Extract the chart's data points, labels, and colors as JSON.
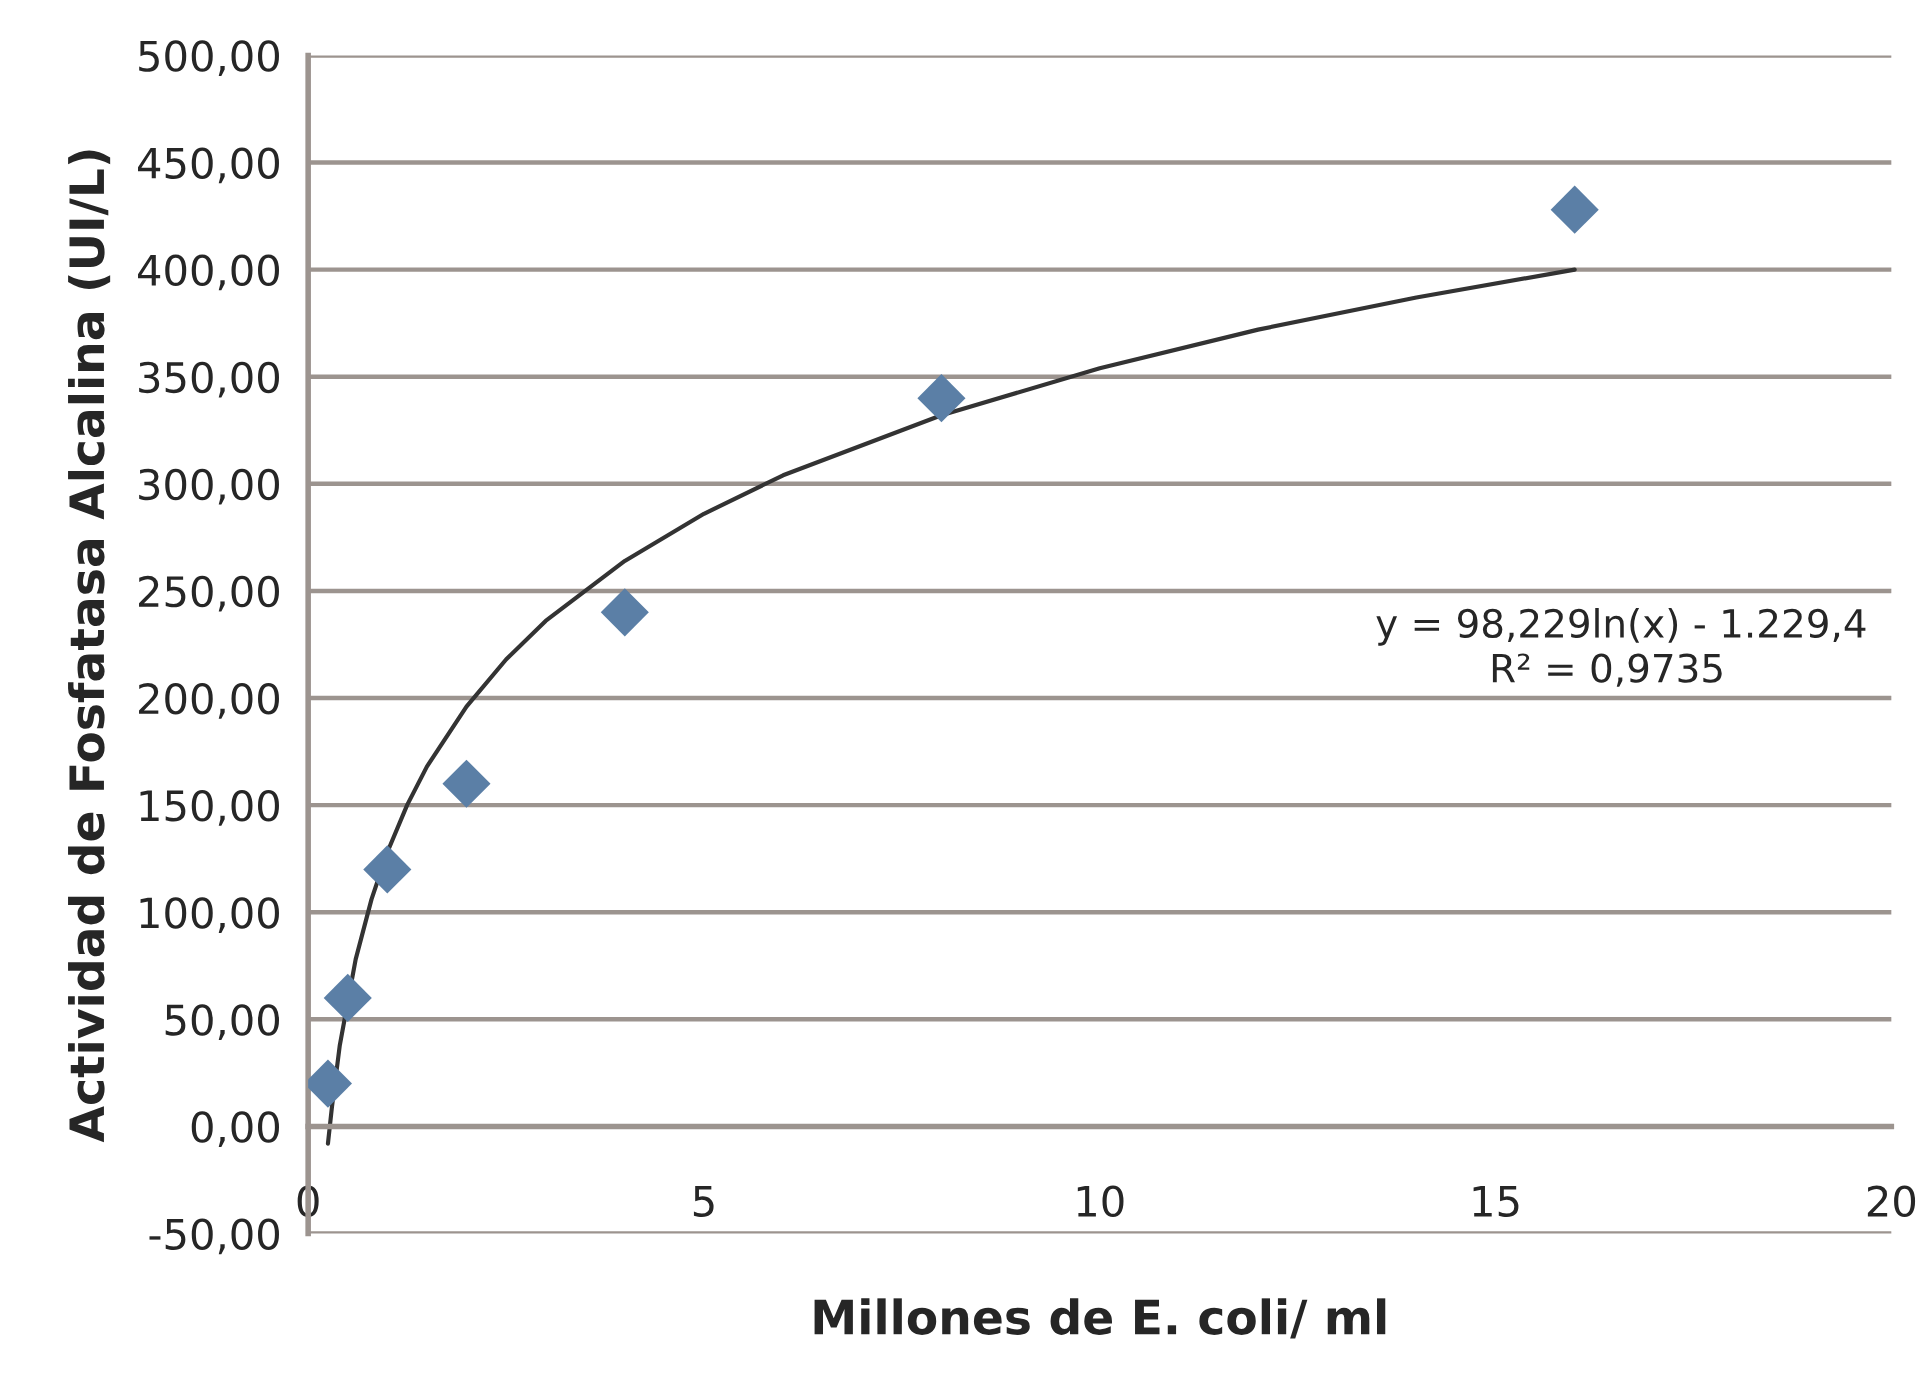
{
  "chart_data": {
    "type": "scatter",
    "xlabel": "Millones de E. coli/ ml",
    "ylabel": "Actividad de Fosfatasa Alcalina (UI/L)",
    "annotations": [
      "y = 98,229ln(x) - 1.229,4",
      "R² = 0,9735"
    ],
    "xlim": [
      0,
      20
    ],
    "xticks": [
      0,
      5,
      10,
      15,
      20
    ],
    "ylim": [
      -50,
      500
    ],
    "yticks": [
      {
        "value": -50,
        "label": "-50,00"
      },
      {
        "value": 0,
        "label": "0,00"
      },
      {
        "value": 50,
        "label": "50,00"
      },
      {
        "value": 100,
        "label": "100,00"
      },
      {
        "value": 150,
        "label": "150,00"
      },
      {
        "value": 200,
        "label": "200,00"
      },
      {
        "value": 250,
        "label": "250,00"
      },
      {
        "value": 300,
        "label": "300,00"
      },
      {
        "value": 350,
        "label": "350,00"
      },
      {
        "value": 400,
        "label": "400,00"
      },
      {
        "value": 450,
        "label": "450,00"
      },
      {
        "value": 500,
        "label": "500,00"
      }
    ],
    "grid": "y",
    "legend": false,
    "series": [
      {
        "marker": "diamond",
        "color": "#5b7fa6",
        "x": [
          0.25,
          0.5,
          1,
          2,
          4,
          8,
          16
        ],
        "values": [
          20,
          60,
          120,
          160,
          240,
          340,
          428
        ]
      },
      {
        "type": "line",
        "marker": "none",
        "line_style": "solid",
        "color": "#333333",
        "x": [
          0.25,
          0.3,
          0.4,
          0.6,
          0.8,
          1,
          1.25,
          1.5,
          2,
          2.5,
          3,
          4,
          5,
          6,
          8,
          10,
          12,
          14,
          16
        ],
        "values": [
          -8,
          9,
          38,
          78,
          106,
          128,
          150,
          168,
          196,
          218,
          236,
          264,
          286,
          304,
          332,
          354,
          372,
          387,
          400
        ]
      }
    ]
  }
}
